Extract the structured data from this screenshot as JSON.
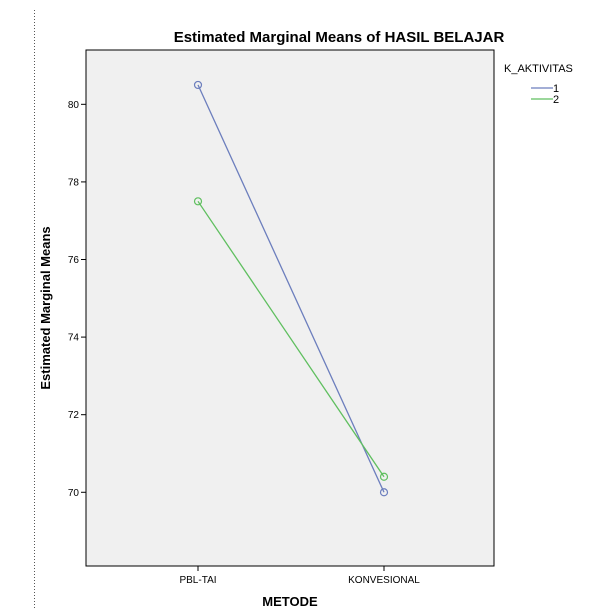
{
  "chart_data": {
    "type": "line",
    "title": "Estimated Marginal Means of HASIL BELAJAR",
    "xlabel": "METODE",
    "ylabel": "Estimated Marginal Means",
    "categories": [
      "PBL-TAI",
      "KONVESIONAL"
    ],
    "yticks": [
      70,
      72,
      74,
      76,
      78,
      80
    ],
    "ylim": [
      68.1,
      81.4
    ],
    "grid": false,
    "legend": {
      "title": "K_AKTIVITAS",
      "placement": "right"
    },
    "series": [
      {
        "name": "1",
        "values": [
          80.5,
          70.0
        ],
        "color": "#6c7ebd"
      },
      {
        "name": "2",
        "values": [
          77.5,
          70.4
        ],
        "color": "#5fbf5f"
      }
    ],
    "plot_background": "#f0f0f0"
  }
}
